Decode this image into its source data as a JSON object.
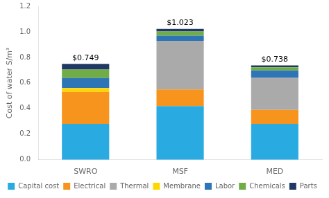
{
  "chart_data": {
    "type": "bar",
    "stacked": true,
    "categories": [
      "SWRO",
      "MSF",
      "MED"
    ],
    "series": [
      {
        "name": "Capital cost",
        "color": "#29ABE2",
        "values": [
          0.28,
          0.42,
          0.28
        ]
      },
      {
        "name": "Electrical",
        "color": "#F7941D",
        "values": [
          0.25,
          0.13,
          0.11
        ]
      },
      {
        "name": "Thermal",
        "color": "#AAAAAA",
        "values": [
          0.0,
          0.38,
          0.25
        ]
      },
      {
        "name": "Membrane",
        "color": "#FFD700",
        "values": [
          0.03,
          0.0,
          0.0
        ]
      },
      {
        "name": "Labor",
        "color": "#2E75B6",
        "values": [
          0.08,
          0.04,
          0.058
        ]
      },
      {
        "name": "Chemicals",
        "color": "#70AD47",
        "values": [
          0.065,
          0.033,
          0.025
        ]
      },
      {
        "name": "Parts",
        "color": "#203864",
        "values": [
          0.044,
          0.02,
          0.015
        ]
      }
    ],
    "annotations": [
      {
        "text": "$0.749",
        "x": "SWRO",
        "y": 0.749
      },
      {
        "text": "$1.023",
        "x": "MSF",
        "y": 1.023
      },
      {
        "text": "$0.738",
        "x": "MED",
        "y": 0.738
      }
    ],
    "ylabel": "Cost of water S/m³",
    "ylim": [
      0,
      1.2
    ],
    "yticks": [
      {
        "value": 0,
        "label": "0.0"
      },
      0.2,
      0.4,
      0.6,
      0.8,
      {
        "value": 1,
        "label": "1.0"
      },
      1.2
    ],
    "grid": false,
    "legend": "bottom"
  }
}
